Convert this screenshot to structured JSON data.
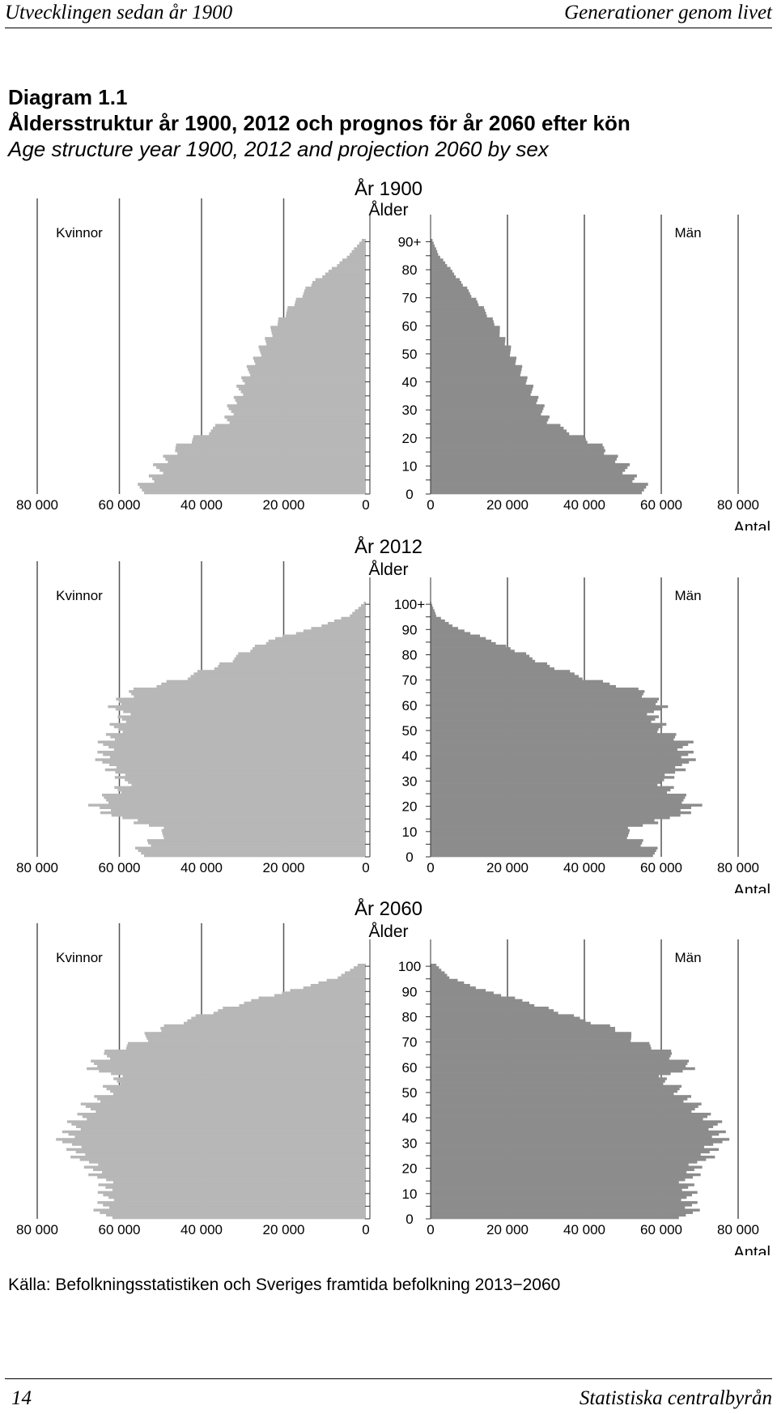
{
  "header": {
    "left": "Utvecklingen sedan år 1900",
    "right": "Generationer genom livet"
  },
  "title": {
    "number": "Diagram 1.1",
    "swedish": "Åldersstruktur år 1900, 2012 och prognos för år 2060 efter kön",
    "english": "Age structure year 1900, 2012 and projection 2060 by sex"
  },
  "source": "Källa: Befolkningsstatistiken och Sveriges framtida befolkning 2013−2060",
  "footer": {
    "page": "14",
    "publisher": "Statistiska centralbyrån"
  },
  "colors": {
    "women": "#b7b7b7",
    "men": "#8c8c8c",
    "grid": "#555555"
  },
  "chart_data": [
    {
      "type": "bar",
      "orientation": "population-pyramid",
      "title": "År 1900",
      "age_label": "Ålder",
      "left_label": "Kvinnor",
      "right_label": "Män",
      "unit_label": "Antal",
      "x_ticks": [
        "80 000",
        "60 000",
        "40 000",
        "20 000",
        "0"
      ],
      "x_ticks_right": [
        "0",
        "20 000",
        "40 000",
        "60 000",
        "80 000"
      ],
      "xlim": [
        0,
        80000
      ],
      "y_ticks": [
        "90+",
        "80",
        "70",
        "60",
        "50",
        "40",
        "30",
        "20",
        "10",
        "0"
      ],
      "ages": [
        0,
        5,
        10,
        15,
        20,
        25,
        30,
        35,
        40,
        45,
        50,
        55,
        60,
        65,
        70,
        75,
        80,
        85,
        90
      ],
      "series": [
        {
          "name": "Kvinnor",
          "values": [
            56000,
            52000,
            50000,
            47000,
            41000,
            34000,
            33000,
            31000,
            30000,
            28000,
            26000,
            24000,
            22000,
            19000,
            16000,
            13000,
            8000,
            4000,
            1000
          ]
        },
        {
          "name": "Män",
          "values": [
            57000,
            53000,
            50000,
            46000,
            39000,
            31000,
            29000,
            27000,
            25000,
            23000,
            21000,
            19000,
            17000,
            14000,
            11000,
            8000,
            5000,
            2000,
            500
          ]
        }
      ]
    },
    {
      "type": "bar",
      "orientation": "population-pyramid",
      "title": "År 2012",
      "age_label": "Ålder",
      "left_label": "Kvinnor",
      "right_label": "Män",
      "unit_label": "Antal",
      "x_ticks": [
        "80 000",
        "60 000",
        "40 000",
        "20 000",
        "0"
      ],
      "x_ticks_right": [
        "0",
        "20 000",
        "40 000",
        "60 000",
        "80 000"
      ],
      "xlim": [
        0,
        80000
      ],
      "y_ticks": [
        "100+",
        "90",
        "80",
        "70",
        "60",
        "50",
        "40",
        "30",
        "20",
        "10",
        "0"
      ],
      "ages": [
        0,
        5,
        10,
        15,
        20,
        25,
        30,
        35,
        40,
        45,
        50,
        55,
        60,
        65,
        70,
        75,
        80,
        85,
        90,
        95,
        100
      ],
      "series": [
        {
          "name": "Kvinnor",
          "values": [
            56000,
            53000,
            48000,
            60000,
            66000,
            61000,
            58000,
            63000,
            64000,
            63000,
            61000,
            59000,
            61000,
            57000,
            45000,
            36000,
            30000,
            24000,
            13000,
            4000,
            500
          ]
        },
        {
          "name": "Män",
          "values": [
            60000,
            55000,
            50000,
            63000,
            69000,
            63000,
            60000,
            66000,
            67000,
            66000,
            60000,
            58000,
            60000,
            55000,
            41000,
            31000,
            24000,
            16000,
            7000,
            1500,
            200
          ]
        }
      ]
    },
    {
      "type": "bar",
      "orientation": "population-pyramid",
      "title": "År 2060",
      "age_label": "Ålder",
      "left_label": "Kvinnor",
      "right_label": "Män",
      "unit_label": "Antal",
      "x_ticks": [
        "80 000",
        "60 000",
        "40 000",
        "20 000",
        "0"
      ],
      "x_ticks_right": [
        "0",
        "20 000",
        "40 000",
        "60 000",
        "80 000"
      ],
      "xlim": [
        0,
        80000
      ],
      "y_ticks": [
        "100",
        "90",
        "80",
        "70",
        "60",
        "50",
        "40",
        "30",
        "20",
        "10",
        "0"
      ],
      "ages": [
        0,
        5,
        10,
        15,
        20,
        25,
        30,
        35,
        40,
        45,
        50,
        55,
        60,
        65,
        70,
        75,
        80,
        85,
        90,
        95,
        100
      ],
      "series": [
        {
          "name": "Kvinnor",
          "values": [
            64000,
            64000,
            63000,
            64000,
            67000,
            70000,
            73000,
            72000,
            69000,
            67000,
            63000,
            60000,
            67000,
            63000,
            55000,
            50000,
            40000,
            30000,
            18000,
            7000,
            2000
          ]
        },
        {
          "name": "Män",
          "values": [
            67000,
            68000,
            67000,
            67000,
            69000,
            72000,
            75000,
            75000,
            72000,
            68000,
            65000,
            60000,
            68000,
            62000,
            54000,
            48000,
            36000,
            26000,
            14000,
            5000,
            1500
          ]
        }
      ]
    }
  ]
}
